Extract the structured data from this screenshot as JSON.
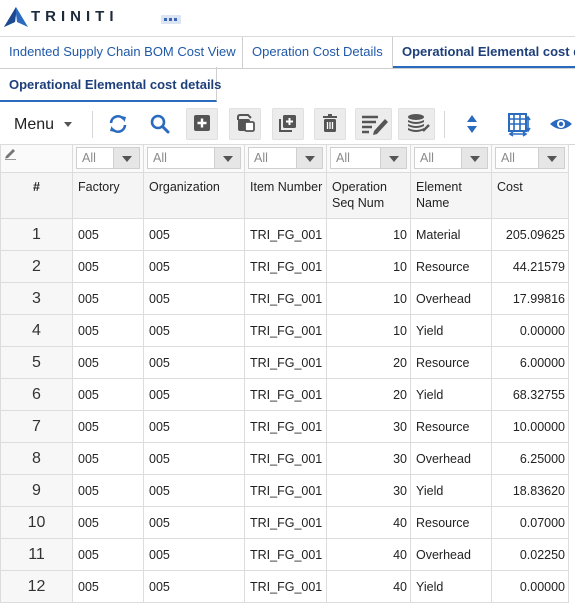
{
  "brand": {
    "logo_text": "TRINITI",
    "accent": "#2a6bbf"
  },
  "tabs": [
    {
      "label": "Indented Supply Chain BOM Cost View",
      "active": false
    },
    {
      "label": "Operation Cost Details",
      "active": false
    },
    {
      "label": "Operational Elemental cost details",
      "active": true
    }
  ],
  "subtab": {
    "label": "Operational Elemental cost details"
  },
  "toolbar": {
    "menu_label": "Menu",
    "icons": [
      "refresh-icon",
      "search-icon",
      "add-icon",
      "copy-icon",
      "add-row-icon",
      "delete-icon",
      "edit-list-icon",
      "database-icon",
      "sort-icon",
      "column-settings-icon",
      "view-icon"
    ]
  },
  "filters": {
    "values": [
      "All",
      "All",
      "All",
      "All",
      "All",
      "All"
    ]
  },
  "columns": [
    "#",
    "Factory",
    "Organization",
    "Item Number",
    "Operation Seq Num",
    "Element Name",
    "Cost"
  ],
  "rows": [
    {
      "idx": "1",
      "factory": "005",
      "org": "005",
      "item": "TRI_FG_001",
      "seq": "10",
      "element": "Material",
      "cost": "205.09625"
    },
    {
      "idx": "2",
      "factory": "005",
      "org": "005",
      "item": "TRI_FG_001",
      "seq": "10",
      "element": "Resource",
      "cost": "44.21579"
    },
    {
      "idx": "3",
      "factory": "005",
      "org": "005",
      "item": "TRI_FG_001",
      "seq": "10",
      "element": "Overhead",
      "cost": "17.99816"
    },
    {
      "idx": "4",
      "factory": "005",
      "org": "005",
      "item": "TRI_FG_001",
      "seq": "10",
      "element": "Yield",
      "cost": "0.00000"
    },
    {
      "idx": "5",
      "factory": "005",
      "org": "005",
      "item": "TRI_FG_001",
      "seq": "20",
      "element": "Resource",
      "cost": "6.00000"
    },
    {
      "idx": "6",
      "factory": "005",
      "org": "005",
      "item": "TRI_FG_001",
      "seq": "20",
      "element": "Yield",
      "cost": "68.32755"
    },
    {
      "idx": "7",
      "factory": "005",
      "org": "005",
      "item": "TRI_FG_001",
      "seq": "30",
      "element": "Resource",
      "cost": "10.00000"
    },
    {
      "idx": "8",
      "factory": "005",
      "org": "005",
      "item": "TRI_FG_001",
      "seq": "30",
      "element": "Overhead",
      "cost": "6.25000"
    },
    {
      "idx": "9",
      "factory": "005",
      "org": "005",
      "item": "TRI_FG_001",
      "seq": "30",
      "element": "Yield",
      "cost": "18.83620"
    },
    {
      "idx": "10",
      "factory": "005",
      "org": "005",
      "item": "TRI_FG_001",
      "seq": "40",
      "element": "Resource",
      "cost": "0.07000"
    },
    {
      "idx": "11",
      "factory": "005",
      "org": "005",
      "item": "TRI_FG_001",
      "seq": "40",
      "element": "Overhead",
      "cost": "0.02250"
    },
    {
      "idx": "12",
      "factory": "005",
      "org": "005",
      "item": "TRI_FG_001",
      "seq": "40",
      "element": "Yield",
      "cost": "0.00000"
    }
  ]
}
